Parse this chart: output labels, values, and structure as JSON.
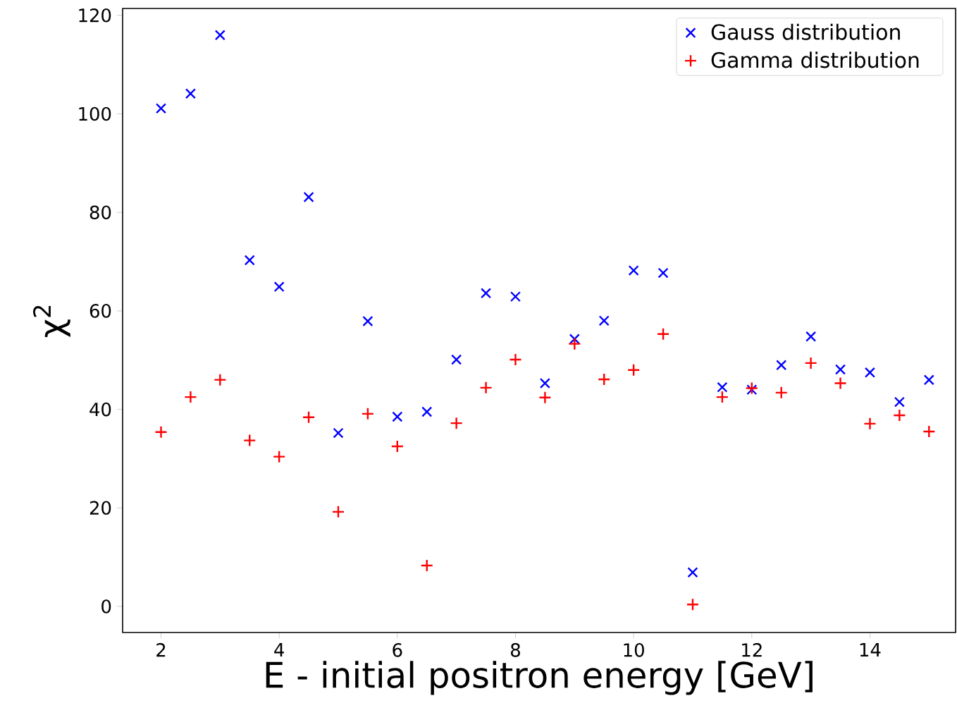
{
  "chart_data": {
    "type": "scatter",
    "xlabel": "E - initial positron energy [GeV]",
    "ylabel": "χ$^{2}$",
    "x": [
      2,
      2.5,
      3,
      3.5,
      4,
      4.5,
      5,
      5.5,
      6,
      6.5,
      7,
      7.5,
      8,
      8.5,
      9,
      9.5,
      10,
      10.5,
      11,
      11.5,
      12,
      12.5,
      13,
      13.5,
      14,
      14.5,
      15
    ],
    "series": [
      {
        "name": "Gauss distribution",
        "color": "#0000ff",
        "marker": "cross",
        "values": [
          101.1,
          104.1,
          116.0,
          70.3,
          64.9,
          83.1,
          35.2,
          57.9,
          38.5,
          39.5,
          50.1,
          63.6,
          62.9,
          45.3,
          54.3,
          58.0,
          68.2,
          67.7,
          6.9,
          44.5,
          44.0,
          49.0,
          54.8,
          48.1,
          47.5,
          41.5,
          46.0
        ]
      },
      {
        "name": "Gamma distribution",
        "color": "#ff0000",
        "marker": "plus",
        "values": [
          35.4,
          42.5,
          46.0,
          33.7,
          30.4,
          38.4,
          19.2,
          39.1,
          32.5,
          8.3,
          37.2,
          44.4,
          50.1,
          42.4,
          53.3,
          46.1,
          48.0,
          55.3,
          0.4,
          42.5,
          44.3,
          43.4,
          49.4,
          45.3,
          37.1,
          38.8,
          35.5
        ]
      }
    ],
    "xlim": [
      1.35,
      15.45
    ],
    "ylim": [
      -5.3,
      121.4
    ],
    "xticks": [
      2,
      4,
      6,
      8,
      10,
      12,
      14
    ],
    "yticks": [
      0,
      20,
      40,
      60,
      80,
      100,
      120
    ],
    "grid": false,
    "legend": "top right"
  }
}
